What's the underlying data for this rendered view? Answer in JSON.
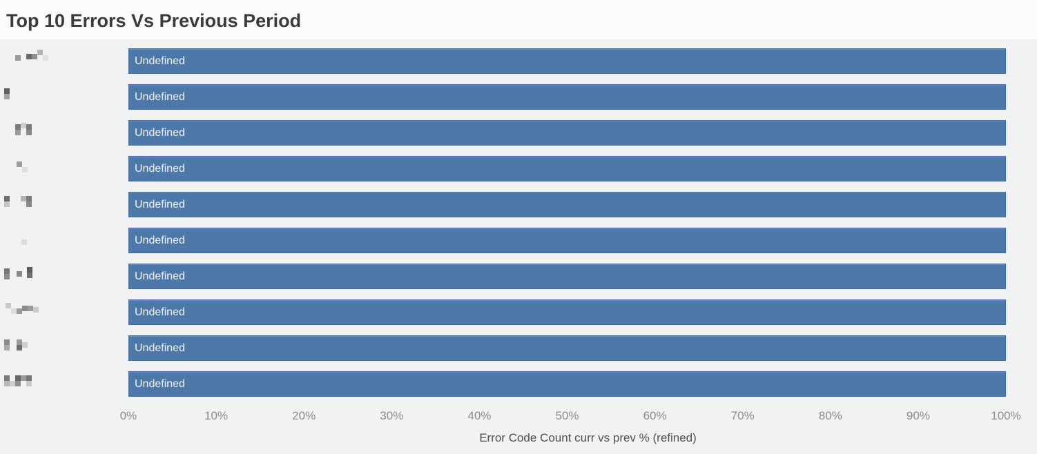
{
  "header": {
    "title": "Top 10 Errors Vs Previous Period"
  },
  "chart_data": {
    "type": "bar",
    "orientation": "horizontal",
    "title": "Top 10 Errors Vs Previous Period",
    "xlabel": "Error Code Count curr vs prev % (refined)",
    "ylabel": "",
    "xlim": [
      0,
      100
    ],
    "x_tick_labels": [
      "0%",
      "10%",
      "20%",
      "30%",
      "40%",
      "50%",
      "60%",
      "70%",
      "80%",
      "90%",
      "100%"
    ],
    "x_tick_values": [
      0,
      10,
      20,
      30,
      40,
      50,
      60,
      70,
      80,
      90,
      100
    ],
    "grid": false,
    "legend": false,
    "categories_redacted": true,
    "categories": [
      "[redacted]",
      "[redacted]",
      "[redacted]",
      "[redacted]",
      "[redacted]",
      "[redacted]",
      "[redacted]",
      "[redacted]",
      "[redacted]",
      "[redacted]"
    ],
    "values": [
      100,
      100,
      100,
      100,
      100,
      100,
      100,
      100,
      100,
      100
    ],
    "bar_value_labels": [
      "Undefined",
      "Undefined",
      "Undefined",
      "Undefined",
      "Undefined",
      "Undefined",
      "Undefined",
      "Undefined",
      "Undefined",
      "Undefined"
    ],
    "colors": {
      "bar_fill": "#4c79a9",
      "bar_border": "#3c6b9c",
      "bar_label_text": "#f2f4f7",
      "title_text": "#3b3b3b",
      "tick_text": "#8b8b8b",
      "axis_label_text": "#4f4f4f",
      "chart_background": "#f1f2f2",
      "title_bar_background": "#fbfbfb"
    },
    "redacted_label_mosaics": [
      [
        [
          22,
          14,
          "#9a9a9a"
        ],
        [
          38,
          12,
          "#6b6b6b"
        ],
        [
          46,
          12,
          "#8e8e8e"
        ],
        [
          54,
          6,
          "#b3b3b3"
        ],
        [
          62,
          14,
          "#e0e0e0"
        ]
      ],
      [
        [
          6,
          10,
          "#5f5f5f"
        ],
        [
          6,
          18,
          "#a0a0a0"
        ]
      ],
      [
        [
          22,
          10,
          "#7a7a7a"
        ],
        [
          30,
          8,
          "#cfcfcf"
        ],
        [
          38,
          10,
          "#7a7a7a"
        ],
        [
          22,
          18,
          "#9a9a9a"
        ],
        [
          38,
          18,
          "#8a8a8a"
        ]
      ],
      [
        [
          24,
          12,
          "#9c9c9c"
        ],
        [
          32,
          20,
          "#dedede"
        ]
      ],
      [
        [
          6,
          10,
          "#6e6e6e"
        ],
        [
          6,
          18,
          "#c4c4c4"
        ],
        [
          30,
          10,
          "#b5b5b5"
        ],
        [
          38,
          10,
          "#7a7a7a"
        ],
        [
          38,
          18,
          "#888888"
        ]
      ],
      [
        [
          31,
          21,
          "#dcdcdc"
        ]
      ],
      [
        [
          6,
          11,
          "#777777"
        ],
        [
          6,
          19,
          "#8e8e8e"
        ],
        [
          24,
          15,
          "#8a8a8a"
        ],
        [
          39,
          9,
          "#5c5c5c"
        ],
        [
          39,
          17,
          "#6e6e6e"
        ]
      ],
      [
        [
          8,
          9,
          "#c8c8c8"
        ],
        [
          16,
          17,
          "#dcdcdc"
        ],
        [
          24,
          17,
          "#9a9a9a"
        ],
        [
          32,
          13,
          "#8a8a8a"
        ],
        [
          40,
          13,
          "#9c9c9c"
        ],
        [
          48,
          15,
          "#cacaca"
        ]
      ],
      [
        [
          6,
          10,
          "#8a8a8a"
        ],
        [
          6,
          18,
          "#ababab"
        ],
        [
          24,
          10,
          "#9a9a9a"
        ],
        [
          24,
          18,
          "#6b6b6b"
        ],
        [
          32,
          14,
          "#cdcdcd"
        ]
      ],
      [
        [
          6,
          10,
          "#7a7a7a"
        ],
        [
          6,
          18,
          "#b8b8b8"
        ],
        [
          14,
          18,
          "#cdcdcd"
        ],
        [
          22,
          10,
          "#666666"
        ],
        [
          22,
          18,
          "#8e8e8e"
        ],
        [
          30,
          10,
          "#9a9a9a"
        ],
        [
          38,
          10,
          "#767676"
        ],
        [
          38,
          18,
          "#c8c8c8"
        ]
      ]
    ]
  }
}
